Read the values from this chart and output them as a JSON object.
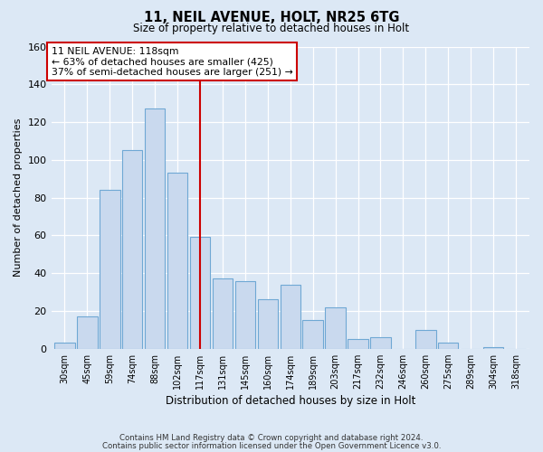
{
  "title": "11, NEIL AVENUE, HOLT, NR25 6TG",
  "subtitle": "Size of property relative to detached houses in Holt",
  "xlabel": "Distribution of detached houses by size in Holt",
  "ylabel": "Number of detached properties",
  "bar_labels": [
    "30sqm",
    "45sqm",
    "59sqm",
    "74sqm",
    "88sqm",
    "102sqm",
    "117sqm",
    "131sqm",
    "145sqm",
    "160sqm",
    "174sqm",
    "189sqm",
    "203sqm",
    "217sqm",
    "232sqm",
    "246sqm",
    "260sqm",
    "275sqm",
    "289sqm",
    "304sqm",
    "318sqm"
  ],
  "bar_values": [
    3,
    17,
    84,
    105,
    127,
    93,
    59,
    37,
    36,
    26,
    34,
    15,
    22,
    5,
    6,
    0,
    10,
    3,
    0,
    1,
    0
  ],
  "bar_color": "#c9d9ee",
  "bar_edge_color": "#6fa8d4",
  "vline_x_index": 6,
  "vline_color": "#cc0000",
  "annotation_title": "11 NEIL AVENUE: 118sqm",
  "annotation_line1": "← 63% of detached houses are smaller (425)",
  "annotation_line2": "37% of semi-detached houses are larger (251) →",
  "annotation_box_facecolor": "#ffffff",
  "annotation_box_edgecolor": "#cc0000",
  "ylim": [
    0,
    160
  ],
  "yticks": [
    0,
    20,
    40,
    60,
    80,
    100,
    120,
    140,
    160
  ],
  "footer1": "Contains HM Land Registry data © Crown copyright and database right 2024.",
  "footer2": "Contains public sector information licensed under the Open Government Licence v3.0.",
  "bg_color": "#dce8f5",
  "plot_bg_color": "#dce8f5",
  "grid_color": "#ffffff"
}
